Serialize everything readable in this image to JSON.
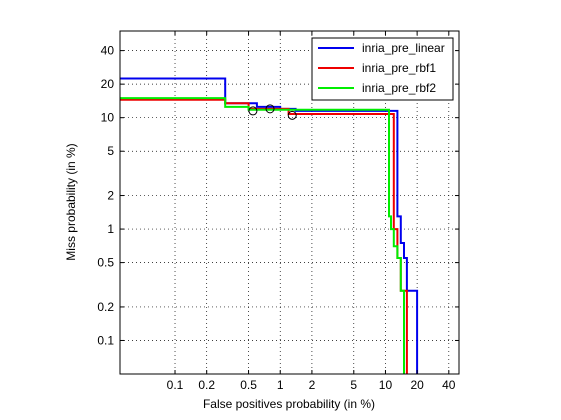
{
  "chart_data": {
    "type": "line",
    "xlabel": "False positives probability (in %)",
    "ylabel": "Miss probability (in %)",
    "x_scale": "log",
    "y_scale": "log",
    "xlim": [
      0.03,
      50
    ],
    "ylim": [
      0.05,
      60
    ],
    "grid": true,
    "legend_position": "top-right",
    "xticks": [
      0.1,
      0.2,
      0.5,
      1,
      2,
      5,
      10,
      20,
      40
    ],
    "xtick_labels": [
      "0.1",
      "0.2",
      "0.5",
      "1",
      "2",
      "5",
      "10",
      "20",
      "40"
    ],
    "yticks": [
      0.1,
      0.2,
      0.5,
      1,
      2,
      5,
      10,
      20,
      40
    ],
    "ytick_labels": [
      "0.1",
      "0.2",
      "0.5",
      "1",
      "2",
      "5",
      "10",
      "20",
      "40"
    ],
    "series": [
      {
        "name": "inria_pre_linear",
        "color": "#0000ee",
        "points": [
          [
            0.03,
            22.5
          ],
          [
            0.3,
            22.5
          ],
          [
            0.3,
            13.5
          ],
          [
            0.6,
            13.5
          ],
          [
            0.6,
            12.5
          ],
          [
            1.0,
            12.5
          ],
          [
            1.0,
            12.0
          ],
          [
            1.4,
            12.0
          ],
          [
            1.4,
            11.5
          ],
          [
            13.0,
            11.5
          ],
          [
            13.0,
            1.3
          ],
          [
            14.0,
            1.3
          ],
          [
            14.0,
            0.75
          ],
          [
            15.0,
            0.75
          ],
          [
            15.0,
            0.55
          ],
          [
            16.0,
            0.55
          ],
          [
            16.0,
            0.28
          ],
          [
            20.0,
            0.28
          ],
          [
            20.0,
            0.05
          ]
        ],
        "marker": [
          0.8,
          12.0
        ]
      },
      {
        "name": "inria_pre_rbf1",
        "color": "#ee0000",
        "points": [
          [
            0.03,
            14.5
          ],
          [
            0.3,
            14.5
          ],
          [
            0.3,
            13.5
          ],
          [
            0.5,
            13.5
          ],
          [
            0.5,
            12.0
          ],
          [
            1.2,
            12.0
          ],
          [
            1.2,
            10.8
          ],
          [
            12.0,
            10.8
          ],
          [
            12.0,
            1.0
          ],
          [
            13.0,
            1.0
          ],
          [
            13.0,
            0.55
          ],
          [
            14.0,
            0.55
          ],
          [
            14.0,
            0.28
          ],
          [
            16.0,
            0.28
          ],
          [
            16.0,
            0.05
          ]
        ],
        "marker": [
          1.3,
          10.5
        ]
      },
      {
        "name": "inria_pre_rbf2",
        "color": "#00ee00",
        "points": [
          [
            0.03,
            15.0
          ],
          [
            0.3,
            15.0
          ],
          [
            0.3,
            12.5
          ],
          [
            0.5,
            12.5
          ],
          [
            0.5,
            11.8
          ],
          [
            10.8,
            11.8
          ],
          [
            10.8,
            1.3
          ],
          [
            11.3,
            1.3
          ],
          [
            11.3,
            1.0
          ],
          [
            12.0,
            1.0
          ],
          [
            12.0,
            0.7
          ],
          [
            13.0,
            0.7
          ],
          [
            13.0,
            0.55
          ],
          [
            14.0,
            0.55
          ],
          [
            14.0,
            0.28
          ],
          [
            15.0,
            0.28
          ],
          [
            15.0,
            0.05
          ]
        ],
        "marker": [
          0.55,
          11.5
        ]
      }
    ]
  }
}
